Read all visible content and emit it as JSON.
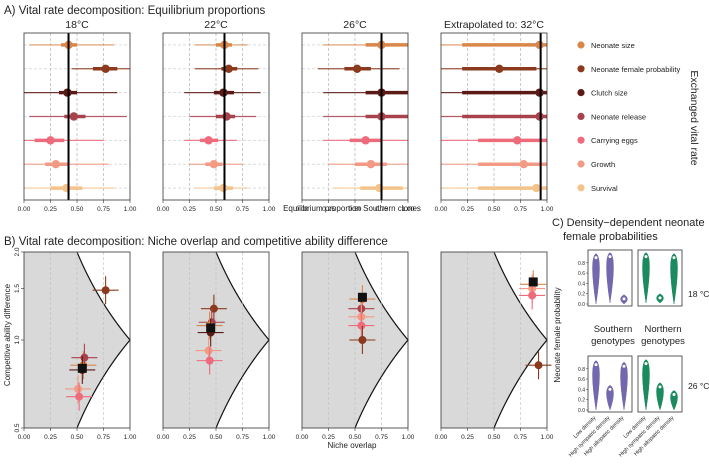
{
  "colors": {
    "neonate_size": "#d9864a",
    "neonate_female_probability": "#8b3a1e",
    "clutch_size": "#5c1a16",
    "neonate_release": "#a8434d",
    "carrying_eggs": "#ee6b7c",
    "growth": "#f29a84",
    "survival": "#f3c38a",
    "southern": "#7268ad",
    "northern": "#1b8a5e",
    "black": "#111111",
    "grey_fill": "#d9d9d9"
  },
  "chart_data": [
    {
      "id": "A",
      "type": "scatter",
      "title": "A) Vital rate decomposition: Equilibrium proportions",
      "xlabel": "Equilibrium proportion Southern clones",
      "xlim": [
        0,
        1
      ],
      "xticks": [
        "0.00",
        "0.25",
        "0.50",
        "0.75",
        "1.00"
      ],
      "legend_title": "Exchanged vital rate",
      "legend": [
        "Neonate size",
        "Neonate female probability",
        "Clutch size",
        "Neonate release",
        "Carrying eggs",
        "Growth",
        "Survival"
      ],
      "panels": [
        {
          "title": "18°C",
          "baseline": 0.42,
          "points": [
            {
              "rate": "Neonate size",
              "mean": 0.42,
              "inner": [
                0.35,
                0.5
              ],
              "outer": [
                0.05,
                0.85
              ]
            },
            {
              "rate": "Neonate female probability",
              "mean": 0.77,
              "inner": [
                0.65,
                0.88
              ],
              "outer": [
                0.45,
                1.0
              ]
            },
            {
              "rate": "Clutch size",
              "mean": 0.41,
              "inner": [
                0.33,
                0.5
              ],
              "outer": [
                0.0,
                0.88
              ]
            },
            {
              "rate": "Neonate release",
              "mean": 0.47,
              "inner": [
                0.38,
                0.58
              ],
              "outer": [
                0.05,
                0.97
              ]
            },
            {
              "rate": "Carrying eggs",
              "mean": 0.25,
              "inner": [
                0.1,
                0.38
              ],
              "outer": [
                0.0,
                0.75
              ]
            },
            {
              "rate": "Growth",
              "mean": 0.3,
              "inner": [
                0.2,
                0.42
              ],
              "outer": [
                0.0,
                0.8
              ]
            },
            {
              "rate": "Survival",
              "mean": 0.4,
              "inner": [
                0.25,
                0.55
              ],
              "outer": [
                0.0,
                0.85
              ]
            }
          ]
        },
        {
          "title": "22°C",
          "baseline": 0.58,
          "points": [
            {
              "rate": "Neonate size",
              "mean": 0.58,
              "inner": [
                0.5,
                0.65
              ],
              "outer": [
                0.3,
                0.8
              ]
            },
            {
              "rate": "Neonate female probability",
              "mean": 0.62,
              "inner": [
                0.55,
                0.7
              ],
              "outer": [
                0.3,
                0.9
              ]
            },
            {
              "rate": "Clutch size",
              "mean": 0.57,
              "inner": [
                0.48,
                0.67
              ],
              "outer": [
                0.2,
                0.92
              ]
            },
            {
              "rate": "Neonate release",
              "mean": 0.6,
              "inner": [
                0.5,
                0.68
              ],
              "outer": [
                0.25,
                0.88
              ]
            },
            {
              "rate": "Carrying eggs",
              "mean": 0.43,
              "inner": [
                0.35,
                0.52
              ],
              "outer": [
                0.2,
                0.7
              ]
            },
            {
              "rate": "Growth",
              "mean": 0.48,
              "inner": [
                0.4,
                0.56
              ],
              "outer": [
                0.25,
                0.75
              ]
            },
            {
              "rate": "Survival",
              "mean": 0.57,
              "inner": [
                0.48,
                0.66
              ],
              "outer": [
                0.3,
                0.8
              ]
            }
          ]
        },
        {
          "title": "26°C",
          "baseline": 0.75,
          "points": [
            {
              "rate": "Neonate size",
              "mean": 0.75,
              "inner": [
                0.6,
                1.0
              ],
              "outer": [
                0.2,
                1.0
              ]
            },
            {
              "rate": "Neonate female probability",
              "mean": 0.52,
              "inner": [
                0.4,
                0.65
              ],
              "outer": [
                0.15,
                0.92
              ]
            },
            {
              "rate": "Clutch size",
              "mean": 0.75,
              "inner": [
                0.6,
                1.0
              ],
              "outer": [
                0.2,
                1.0
              ]
            },
            {
              "rate": "Neonate release",
              "mean": 0.75,
              "inner": [
                0.6,
                1.0
              ],
              "outer": [
                0.2,
                1.0
              ]
            },
            {
              "rate": "Carrying eggs",
              "mean": 0.6,
              "inner": [
                0.45,
                0.75
              ],
              "outer": [
                0.2,
                1.0
              ]
            },
            {
              "rate": "Growth",
              "mean": 0.65,
              "inner": [
                0.5,
                0.8
              ],
              "outer": [
                0.25,
                1.0
              ]
            },
            {
              "rate": "Survival",
              "mean": 0.73,
              "inner": [
                0.55,
                0.95
              ],
              "outer": [
                0.3,
                1.0
              ]
            }
          ]
        },
        {
          "title": "Extrapolated to: 32°C",
          "baseline": 0.94,
          "points": [
            {
              "rate": "Neonate size",
              "mean": 0.93,
              "inner": [
                0.2,
                1.0
              ],
              "outer": [
                0.0,
                1.0
              ]
            },
            {
              "rate": "Neonate female probability",
              "mean": 0.55,
              "inner": [
                0.2,
                0.9
              ],
              "outer": [
                0.0,
                1.0
              ]
            },
            {
              "rate": "Clutch size",
              "mean": 0.93,
              "inner": [
                0.2,
                1.0
              ],
              "outer": [
                0.0,
                1.0
              ]
            },
            {
              "rate": "Neonate release",
              "mean": 0.93,
              "inner": [
                0.2,
                1.0
              ],
              "outer": [
                0.0,
                1.0
              ]
            },
            {
              "rate": "Carrying eggs",
              "mean": 0.72,
              "inner": [
                0.35,
                1.0
              ],
              "outer": [
                0.0,
                1.0
              ]
            },
            {
              "rate": "Growth",
              "mean": 0.78,
              "inner": [
                0.35,
                1.0
              ],
              "outer": [
                0.0,
                1.0
              ]
            },
            {
              "rate": "Survival",
              "mean": 0.9,
              "inner": [
                0.35,
                1.0
              ],
              "outer": [
                0.0,
                1.0
              ]
            }
          ]
        }
      ]
    },
    {
      "id": "B",
      "type": "scatter",
      "title": "B) Vital rate decomposition: Niche overlap and competitive ability difference",
      "xlabel": "Niche overlap",
      "ylabel": "Competitive ability difference",
      "xlim": [
        0,
        1
      ],
      "ylim": [
        0.5,
        2.0
      ],
      "yscale": "log",
      "xticks": [
        "0.00",
        "0.25",
        "0.50",
        "0.75",
        "1.00"
      ],
      "yticks": [
        "0.5",
        "1.0",
        "1.5",
        "2.0"
      ],
      "panels": [
        {
          "baseline": {
            "x": 0.55,
            "y": 0.8
          },
          "points": [
            {
              "rate": "Neonate female probability",
              "x": 0.77,
              "y": 1.48
            },
            {
              "rate": "Neonate size",
              "x": 0.56,
              "y": 0.82
            },
            {
              "rate": "Neonate release",
              "x": 0.57,
              "y": 0.87
            },
            {
              "rate": "Clutch size",
              "x": 0.55,
              "y": 0.79
            },
            {
              "rate": "Growth",
              "x": 0.51,
              "y": 0.68
            },
            {
              "rate": "Carrying eggs",
              "x": 0.52,
              "y": 0.64
            }
          ]
        },
        {
          "baseline": {
            "x": 0.45,
            "y": 1.1
          },
          "points": [
            {
              "rate": "Neonate female probability",
              "x": 0.48,
              "y": 1.28
            },
            {
              "rate": "Neonate release",
              "x": 0.46,
              "y": 1.15
            },
            {
              "rate": "Neonate size",
              "x": 0.44,
              "y": 1.12
            },
            {
              "rate": "Clutch size",
              "x": 0.45,
              "y": 1.06
            },
            {
              "rate": "Growth",
              "x": 0.43,
              "y": 0.92
            },
            {
              "rate": "Carrying eggs",
              "x": 0.44,
              "y": 0.85
            }
          ]
        },
        {
          "baseline": {
            "x": 0.57,
            "y": 1.4
          },
          "points": [
            {
              "rate": "Neonate size",
              "x": 0.57,
              "y": 1.38
            },
            {
              "rate": "Neonate release",
              "x": 0.56,
              "y": 1.28
            },
            {
              "rate": "Growth",
              "x": 0.56,
              "y": 1.2
            },
            {
              "rate": "Carrying eggs",
              "x": 0.56,
              "y": 1.12
            },
            {
              "rate": "Neonate female probability",
              "x": 0.57,
              "y": 1.0
            }
          ]
        },
        {
          "baseline": {
            "x": 0.87,
            "y": 1.58
          },
          "points": [
            {
              "rate": "Neonate size",
              "x": 0.87,
              "y": 1.55
            },
            {
              "rate": "Growth",
              "x": 0.86,
              "y": 1.5
            },
            {
              "rate": "Carrying eggs",
              "x": 0.86,
              "y": 1.42
            },
            {
              "rate": "Neonate female probability",
              "x": 0.92,
              "y": 0.82
            }
          ]
        }
      ]
    },
    {
      "id": "C",
      "type": "violin",
      "title": "C) Density−dependent neonate",
      "title_line2": "female probabilities",
      "ylabel": "Neonate female probability",
      "ylim": [
        0,
        1
      ],
      "yticks": [
        "0.0",
        "0.2",
        "0.4",
        "0.6",
        "0.8"
      ],
      "categories": [
        "Low density",
        "High sympatric density",
        "High allopatric density"
      ],
      "groups": [
        "Southern genotypes",
        "Northern genotypes"
      ],
      "temperatures": [
        "18 °C",
        "26 °C"
      ]
    }
  ],
  "labels": {
    "southern_line1": "Southern",
    "southern_line2": "genotypes",
    "northern_line1": "Northern",
    "northern_line2": "genotypes",
    "temp_18": "18 °C",
    "temp_26": "26 °C"
  }
}
